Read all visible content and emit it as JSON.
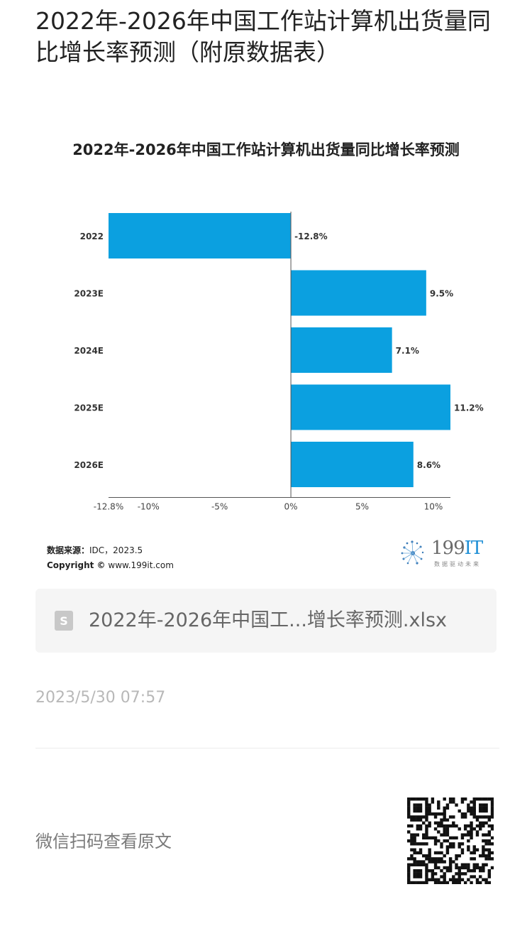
{
  "article": {
    "title": "2022年-2026年中国工作站计算机出货量同比增长率预测（附原数据表）"
  },
  "chart": {
    "source_label": "数据来源：",
    "source_value": "IDC，2023.5",
    "copyright_label": "Copyright ©",
    "copyright_value": "www.199it.com"
  },
  "brand": {
    "name_prefix": "199",
    "name_suffix": "IT",
    "tagline": "数据驱动未来"
  },
  "attachment": {
    "file_name": "2022年-2026年中国工...增长率预测.xlsx",
    "icon_letter": "S"
  },
  "meta": {
    "timestamp": "2023/5/30 07:57",
    "scan_text": "微信扫码查看原文"
  },
  "chart_data": {
    "type": "bar",
    "orientation": "horizontal",
    "title": "2022年-2026年中国工作站计算机出货量同比增长率预测",
    "categories": [
      "2022",
      "2023E",
      "2024E",
      "2025E",
      "2026E"
    ],
    "values": [
      -12.8,
      9.5,
      7.1,
      11.2,
      8.6
    ],
    "value_labels": [
      "-12.8%",
      "9.5%",
      "7.1%",
      "11.2%",
      "8.6%"
    ],
    "xlim": [
      -12.8,
      11.2
    ],
    "xticks": [
      -12.8,
      -10,
      -5,
      0,
      5,
      10
    ],
    "xtick_labels": [
      "-12.8%",
      "-10%",
      "-5%",
      "0%",
      "5%",
      "10%"
    ],
    "xlabel": "",
    "ylabel": "",
    "grid": false,
    "legend": "none",
    "bar_color": "#0ba0e0"
  }
}
